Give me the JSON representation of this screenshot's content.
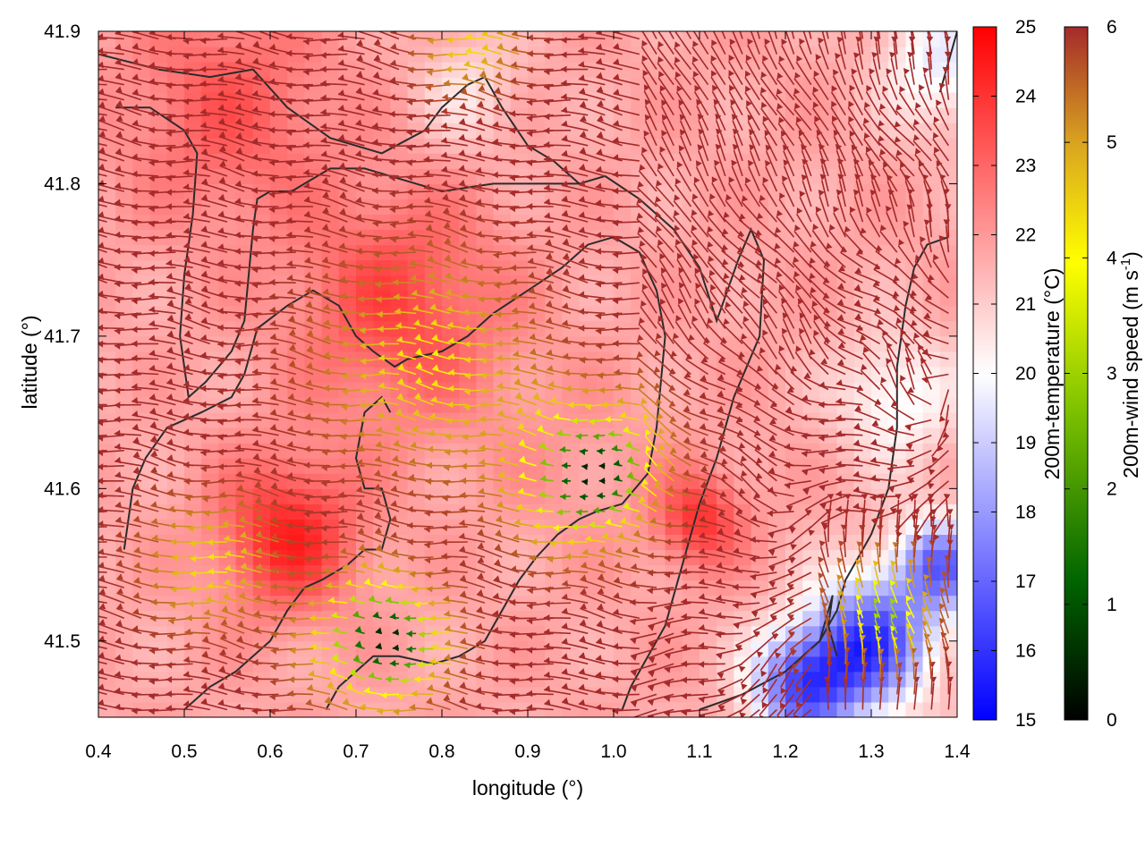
{
  "chart_data": {
    "type": "heatmap",
    "title": "",
    "xlabel": "longitude (°)",
    "ylabel": "latitude (°)",
    "xlim": [
      0.4,
      1.4
    ],
    "ylim": [
      41.45,
      41.9
    ],
    "x_ticks": [
      {
        "value": 0.4,
        "label": "0.4"
      },
      {
        "value": 0.5,
        "label": "0.5"
      },
      {
        "value": 0.6,
        "label": "0.6"
      },
      {
        "value": 0.7,
        "label": "0.7"
      },
      {
        "value": 0.8,
        "label": "0.8"
      },
      {
        "value": 0.9,
        "label": "0.9"
      },
      {
        "value": 1.0,
        "label": "1.0"
      },
      {
        "value": 1.1,
        "label": "1.1"
      },
      {
        "value": 1.2,
        "label": "1.2"
      },
      {
        "value": 1.3,
        "label": "1.3"
      },
      {
        "value": 1.4,
        "label": "1.4"
      }
    ],
    "y_ticks": [
      {
        "value": 41.5,
        "label": "41.5"
      },
      {
        "value": 41.6,
        "label": "41.6"
      },
      {
        "value": 41.7,
        "label": "41.7"
      },
      {
        "value": 41.8,
        "label": "41.8"
      },
      {
        "value": 41.9,
        "label": "41.9"
      }
    ],
    "temperature_colorbar": {
      "label": "200m-temperature (°C)",
      "range": [
        15,
        25
      ],
      "ticks": [
        {
          "value": 15,
          "label": "15"
        },
        {
          "value": 16,
          "label": "16"
        },
        {
          "value": 17,
          "label": "17"
        },
        {
          "value": 18,
          "label": "18"
        },
        {
          "value": 19,
          "label": "19"
        },
        {
          "value": 20,
          "label": "20"
        },
        {
          "value": 21,
          "label": "21"
        },
        {
          "value": 22,
          "label": "22"
        },
        {
          "value": 23,
          "label": "23"
        },
        {
          "value": 24,
          "label": "24"
        },
        {
          "value": 25,
          "label": "25"
        }
      ],
      "colors": [
        "#0000ff",
        "#ffffff",
        "#ff0000"
      ]
    },
    "wind_colorbar": {
      "label": "200m-wind speed (m s",
      "label_sup": "-1",
      "label_end": ")",
      "range": [
        0,
        6
      ],
      "ticks": [
        {
          "value": 0,
          "label": "0"
        },
        {
          "value": 1,
          "label": "1"
        },
        {
          "value": 2,
          "label": "2"
        },
        {
          "value": 3,
          "label": "3"
        },
        {
          "value": 4,
          "label": "4"
        },
        {
          "value": 5,
          "label": "5"
        },
        {
          "value": 6,
          "label": "6"
        }
      ],
      "colors": [
        "#000000",
        "#006400",
        "#7fc300",
        "#ffff00",
        "#daa520",
        "#a52a2a"
      ]
    },
    "temperature_field": {
      "background": 21.7,
      "blobs": [
        {
          "lon": 0.75,
          "lat": 41.72,
          "t": 23.6,
          "r": 0.12
        },
        {
          "lon": 0.62,
          "lat": 41.57,
          "t": 24.3,
          "r": 0.08
        },
        {
          "lon": 0.55,
          "lat": 41.85,
          "t": 23.2,
          "r": 0.12
        },
        {
          "lon": 0.95,
          "lat": 41.62,
          "t": 22.0,
          "r": 0.1
        },
        {
          "lon": 1.1,
          "lat": 41.58,
          "t": 24.0,
          "r": 0.05
        },
        {
          "lon": 1.3,
          "lat": 41.5,
          "t": 16.3,
          "r": 0.07
        },
        {
          "lon": 1.22,
          "lat": 41.47,
          "t": 16.8,
          "r": 0.06
        },
        {
          "lon": 1.38,
          "lat": 41.55,
          "t": 17.2,
          "r": 0.05
        },
        {
          "lon": 1.38,
          "lat": 41.88,
          "t": 19.6,
          "r": 0.07
        },
        {
          "lon": 1.33,
          "lat": 41.66,
          "t": 19.8,
          "r": 0.07
        },
        {
          "lon": 0.83,
          "lat": 41.86,
          "t": 20.6,
          "r": 0.06
        }
      ]
    },
    "wind_field": {
      "grid_spacing_lon": 0.02,
      "grid_spacing_lat": 0.01,
      "prevailing_speed": 6.0,
      "calm_centers": [
        {
          "lon": 0.98,
          "lat": 41.61,
          "speed": 0.2,
          "r": 0.09
        },
        {
          "lon": 0.74,
          "lat": 41.5,
          "speed": 0.3,
          "r": 0.08
        },
        {
          "lon": 1.32,
          "lat": 41.51,
          "speed": 2.5,
          "r": 0.06
        },
        {
          "lon": 0.8,
          "lat": 41.68,
          "speed": 3.8,
          "r": 0.13
        },
        {
          "lon": 0.55,
          "lat": 41.55,
          "speed": 3.9,
          "r": 0.08
        },
        {
          "lon": 0.85,
          "lat": 41.89,
          "speed": 4.0,
          "r": 0.06
        }
      ]
    },
    "contours": [
      [
        [
          0.4,
          41.885
        ],
        [
          0.47,
          41.875
        ],
        [
          0.53,
          41.87
        ],
        [
          0.58,
          41.875
        ],
        [
          0.62,
          41.85
        ],
        [
          0.67,
          41.83
        ],
        [
          0.73,
          41.82
        ],
        [
          0.78,
          41.835
        ],
        [
          0.8,
          41.85
        ],
        [
          0.83,
          41.865
        ],
        [
          0.85,
          41.87
        ],
        [
          0.87,
          41.85
        ],
        [
          0.9,
          41.825
        ],
        [
          0.93,
          41.815
        ],
        [
          0.96,
          41.8
        ]
      ],
      [
        [
          0.42,
          41.85
        ],
        [
          0.46,
          41.85
        ],
        [
          0.5,
          41.835
        ],
        [
          0.515,
          41.82
        ],
        [
          0.51,
          41.78
        ],
        [
          0.5,
          41.74
        ],
        [
          0.495,
          41.7
        ],
        [
          0.505,
          41.66
        ],
        [
          0.525,
          41.67
        ],
        [
          0.555,
          41.69
        ],
        [
          0.57,
          41.71
        ],
        [
          0.575,
          41.74
        ],
        [
          0.58,
          41.77
        ],
        [
          0.585,
          41.79
        ],
        [
          0.6,
          41.795
        ],
        [
          0.625,
          41.795
        ],
        [
          0.64,
          41.8
        ],
        [
          0.67,
          41.81
        ],
        [
          0.71,
          41.81
        ],
        [
          0.77,
          41.8
        ],
        [
          0.8,
          41.795
        ],
        [
          0.86,
          41.8
        ],
        [
          0.9,
          41.8
        ],
        [
          0.96,
          41.8
        ]
      ],
      [
        [
          0.96,
          41.8
        ],
        [
          0.99,
          41.805
        ],
        [
          1.03,
          41.79
        ],
        [
          1.07,
          41.77
        ],
        [
          1.1,
          41.745
        ],
        [
          1.12,
          41.71
        ],
        [
          1.145,
          41.75
        ],
        [
          1.16,
          41.77
        ],
        [
          1.175,
          41.75
        ],
        [
          1.17,
          41.7
        ],
        [
          1.14,
          41.66
        ],
        [
          1.12,
          41.62
        ],
        [
          1.1,
          41.59
        ],
        [
          1.09,
          41.57
        ],
        [
          1.08,
          41.55
        ],
        [
          1.07,
          41.53
        ],
        [
          1.06,
          41.51
        ],
        [
          1.04,
          41.49
        ],
        [
          1.02,
          41.47
        ],
        [
          1.01,
          41.455
        ]
      ],
      [
        [
          0.43,
          41.56
        ],
        [
          0.44,
          41.6
        ],
        [
          0.455,
          41.62
        ],
        [
          0.48,
          41.64
        ],
        [
          0.52,
          41.65
        ],
        [
          0.555,
          41.66
        ],
        [
          0.57,
          41.675
        ],
        [
          0.585,
          41.705
        ],
        [
          0.62,
          41.72
        ],
        [
          0.65,
          41.73
        ],
        [
          0.68,
          41.72
        ],
        [
          0.7,
          41.7
        ],
        [
          0.72,
          41.69
        ],
        [
          0.745,
          41.68
        ],
        [
          0.76,
          41.685
        ],
        [
          0.8,
          41.69
        ],
        [
          0.83,
          41.7
        ],
        [
          0.86,
          41.715
        ],
        [
          0.9,
          41.73
        ],
        [
          0.94,
          41.745
        ],
        [
          0.97,
          41.76
        ],
        [
          1.0,
          41.765
        ],
        [
          1.03,
          41.755
        ],
        [
          1.05,
          41.73
        ],
        [
          1.06,
          41.7
        ],
        [
          1.055,
          41.67
        ],
        [
          1.05,
          41.64
        ],
        [
          1.04,
          41.61
        ],
        [
          1.01,
          41.59
        ],
        [
          0.98,
          41.585
        ],
        [
          0.96,
          41.58
        ],
        [
          0.935,
          41.57
        ],
        [
          0.91,
          41.555
        ],
        [
          0.89,
          41.54
        ],
        [
          0.87,
          41.52
        ],
        [
          0.85,
          41.5
        ],
        [
          0.82,
          41.49
        ],
        [
          0.79,
          41.485
        ],
        [
          0.75,
          41.49
        ],
        [
          0.72,
          41.49
        ],
        [
          0.7,
          41.48
        ],
        [
          0.68,
          41.47
        ],
        [
          0.665,
          41.455
        ]
      ],
      [
        [
          0.5,
          41.455
        ],
        [
          0.53,
          41.47
        ],
        [
          0.56,
          41.48
        ],
        [
          0.58,
          41.49
        ],
        [
          0.6,
          41.5
        ],
        [
          0.62,
          41.52
        ],
        [
          0.64,
          41.535
        ],
        [
          0.66,
          41.54
        ],
        [
          0.69,
          41.55
        ],
        [
          0.71,
          41.56
        ],
        [
          0.73,
          41.56
        ],
        [
          0.74,
          41.58
        ],
        [
          0.73,
          41.6
        ],
        [
          0.71,
          41.6
        ],
        [
          0.7,
          41.62
        ],
        [
          0.71,
          41.65
        ],
        [
          0.73,
          41.66
        ],
        [
          0.74,
          41.65
        ]
      ],
      [
        [
          1.1,
          41.455
        ],
        [
          1.15,
          41.465
        ],
        [
          1.2,
          41.48
        ],
        [
          1.24,
          41.5
        ],
        [
          1.26,
          41.52
        ],
        [
          1.27,
          41.54
        ],
        [
          1.28,
          41.55
        ],
        [
          1.3,
          41.57
        ],
        [
          1.32,
          41.6
        ],
        [
          1.33,
          41.64
        ],
        [
          1.33,
          41.68
        ],
        [
          1.34,
          41.72
        ],
        [
          1.35,
          41.745
        ],
        [
          1.365,
          41.76
        ],
        [
          1.39,
          41.765
        ]
      ],
      [
        [
          1.22,
          41.49
        ],
        [
          1.24,
          41.5
        ],
        [
          1.255,
          41.53
        ],
        [
          1.25,
          41.51
        ],
        [
          1.26,
          41.49
        ]
      ],
      [
        [
          1.38,
          41.86
        ],
        [
          1.39,
          41.88
        ],
        [
          1.4,
          41.9
        ]
      ]
    ]
  }
}
